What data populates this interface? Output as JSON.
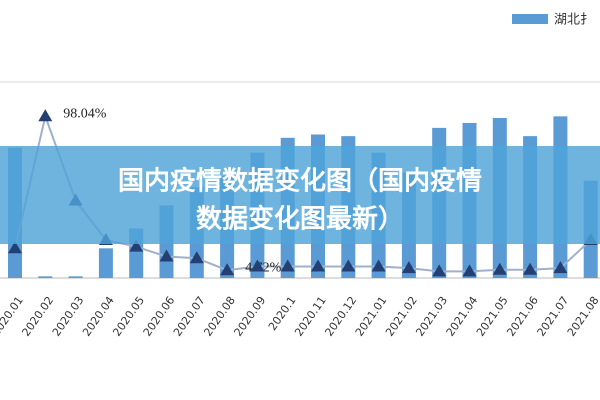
{
  "chart_data": {
    "type": "bar-line",
    "categories": [
      "2020.01",
      "2020.02",
      "2020.03",
      "2020.04",
      "2020.05",
      "2020.06",
      "2020.07",
      "2020.08",
      "2020.09",
      "2020.1",
      "2020.11",
      "2020.12",
      "2021.01",
      "2021.02",
      "2021.03",
      "2021.04",
      "2021.05",
      "2021.06",
      "2021.07",
      "2021.08"
    ],
    "series": [
      {
        "name": "湖北扌",
        "color": "#5b9bd5",
        "kind": "bar",
        "values": [
          79,
          1,
          1,
          18,
          30,
          44,
          55,
          62,
          76,
          85,
          87,
          86,
          76,
          64,
          91,
          94,
          97,
          86,
          98,
          59
        ]
      },
      {
        "color": "#233f73",
        "kind": "line",
        "values": [
          18,
          98.04,
          47,
          23,
          19,
          13,
          12,
          4.72,
          7,
          7,
          7,
          7,
          7,
          6,
          4,
          4,
          5,
          5,
          6,
          23
        ],
        "value_labels": [
          null,
          "98.04%",
          null,
          null,
          null,
          null,
          null,
          "4.72%",
          null,
          null,
          null,
          null,
          null,
          null,
          null,
          null,
          null,
          null,
          null,
          null
        ]
      }
    ],
    "ylim": [
      0,
      117
    ]
  },
  "banner": {
    "lines": [
      "国内疫情数据变化图（国内疫情",
      "数据变化图最新）"
    ]
  }
}
